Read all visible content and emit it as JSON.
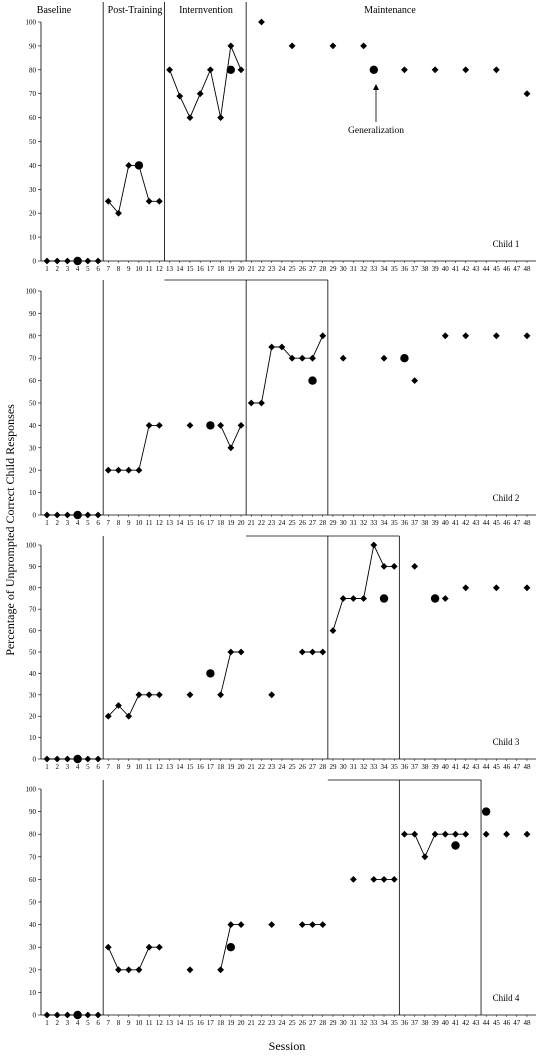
{
  "chart_data": {
    "type": "scatter",
    "xlabel": "Session",
    "ylabel": "Percentage of Unprompted Correct Child Responses",
    "phases": [
      "Baseline",
      "Post-Training",
      "Internvention",
      "Maintenance"
    ],
    "x_ticks": [
      1,
      2,
      3,
      4,
      5,
      6,
      7,
      8,
      9,
      10,
      11,
      12,
      13,
      14,
      15,
      16,
      17,
      18,
      19,
      20,
      21,
      22,
      23,
      24,
      25,
      26,
      27,
      28,
      29,
      30,
      31,
      32,
      33,
      34,
      35,
      36,
      37,
      38,
      39,
      40,
      41,
      42,
      43,
      44,
      45,
      46,
      47,
      48
    ],
    "y_ticks": [
      0,
      10,
      20,
      30,
      40,
      50,
      60,
      70,
      80,
      90,
      100
    ],
    "xlim": [
      1,
      48
    ],
    "ylim": [
      0,
      100
    ],
    "annotation": {
      "text": "Generalization",
      "x": 33,
      "y": 80
    },
    "panels": [
      {
        "label": "Child 1",
        "phase_change_after": [
          6.5,
          12.5,
          20.5
        ],
        "data": [
          [
            1,
            0
          ],
          [
            2,
            0
          ],
          [
            3,
            0
          ],
          [
            4,
            0
          ],
          [
            5,
            0
          ],
          [
            6,
            0
          ],
          [
            7,
            25
          ],
          [
            8,
            20
          ],
          [
            9,
            40
          ],
          [
            10,
            40
          ],
          [
            11,
            25
          ],
          [
            12,
            25
          ],
          [
            13,
            80
          ],
          [
            14,
            69
          ],
          [
            15,
            60
          ],
          [
            16,
            70
          ],
          [
            17,
            80
          ],
          [
            18,
            60
          ],
          [
            19,
            90
          ],
          [
            20,
            80
          ],
          [
            22,
            100
          ],
          [
            25,
            90
          ],
          [
            29,
            90
          ],
          [
            32,
            90
          ],
          [
            36,
            80
          ],
          [
            39,
            80
          ],
          [
            42,
            80
          ],
          [
            45,
            80
          ],
          [
            48,
            70
          ]
        ],
        "generalization": [
          [
            4,
            0
          ],
          [
            10,
            40
          ],
          [
            19,
            80
          ],
          [
            33,
            80
          ]
        ],
        "connected": [
          [
            1,
            2,
            3,
            4,
            5,
            6
          ],
          [
            7,
            8,
            9,
            10,
            11,
            12
          ],
          [
            13,
            14,
            15,
            16,
            17,
            18,
            19,
            20
          ]
        ]
      },
      {
        "label": "Child 2",
        "phase_change_after": [
          6.5,
          20.5,
          28.5
        ],
        "data": [
          [
            1,
            0
          ],
          [
            2,
            0
          ],
          [
            3,
            0
          ],
          [
            4,
            0
          ],
          [
            5,
            0
          ],
          [
            6,
            0
          ],
          [
            7,
            20
          ],
          [
            8,
            20
          ],
          [
            9,
            20
          ],
          [
            10,
            20
          ],
          [
            11,
            40
          ],
          [
            12,
            40
          ],
          [
            15,
            40
          ],
          [
            18,
            40
          ],
          [
            19,
            30
          ],
          [
            20,
            40
          ],
          [
            21,
            50
          ],
          [
            22,
            50
          ],
          [
            23,
            75
          ],
          [
            24,
            75
          ],
          [
            25,
            70
          ],
          [
            26,
            70
          ],
          [
            27,
            70
          ],
          [
            28,
            80
          ],
          [
            30,
            70
          ],
          [
            34,
            70
          ],
          [
            37,
            60
          ],
          [
            40,
            80
          ],
          [
            42,
            80
          ],
          [
            45,
            80
          ],
          [
            48,
            80
          ]
        ],
        "generalization": [
          [
            4,
            0
          ],
          [
            17,
            40
          ],
          [
            27,
            60
          ],
          [
            36,
            70
          ]
        ],
        "connected": [
          [
            1,
            2,
            3,
            4,
            5,
            6
          ],
          [
            7,
            8,
            9,
            10,
            11,
            12
          ],
          [
            18,
            19,
            20
          ],
          [
            21,
            22,
            23,
            24,
            25,
            26,
            27,
            28
          ]
        ]
      },
      {
        "label": "Child 3",
        "phase_change_after": [
          6.5,
          28.5,
          35.5
        ],
        "data": [
          [
            1,
            0
          ],
          [
            2,
            0
          ],
          [
            3,
            0
          ],
          [
            4,
            0
          ],
          [
            5,
            0
          ],
          [
            6,
            0
          ],
          [
            7,
            20
          ],
          [
            8,
            25
          ],
          [
            9,
            20
          ],
          [
            10,
            30
          ],
          [
            11,
            30
          ],
          [
            12,
            30
          ],
          [
            15,
            30
          ],
          [
            18,
            30
          ],
          [
            19,
            50
          ],
          [
            20,
            50
          ],
          [
            23,
            30
          ],
          [
            26,
            50
          ],
          [
            27,
            50
          ],
          [
            28,
            50
          ],
          [
            29,
            60
          ],
          [
            30,
            75
          ],
          [
            31,
            75
          ],
          [
            32,
            75
          ],
          [
            33,
            100
          ],
          [
            34,
            90
          ],
          [
            35,
            90
          ],
          [
            37,
            90
          ],
          [
            40,
            75
          ],
          [
            42,
            80
          ],
          [
            45,
            80
          ],
          [
            48,
            80
          ]
        ],
        "generalization": [
          [
            4,
            0
          ],
          [
            17,
            40
          ],
          [
            34,
            75
          ],
          [
            39,
            75
          ]
        ],
        "connected": [
          [
            1,
            2,
            3,
            4,
            5,
            6
          ],
          [
            7,
            8,
            9,
            10,
            11,
            12
          ],
          [
            18,
            19,
            20
          ],
          [
            26,
            27,
            28
          ],
          [
            29,
            30,
            31,
            32,
            33,
            34,
            35
          ]
        ]
      },
      {
        "label": "Child 4",
        "phase_change_after": [
          6.5,
          35.5,
          43.5
        ],
        "data": [
          [
            1,
            0
          ],
          [
            2,
            0
          ],
          [
            3,
            0
          ],
          [
            4,
            0
          ],
          [
            5,
            0
          ],
          [
            6,
            0
          ],
          [
            7,
            30
          ],
          [
            8,
            20
          ],
          [
            9,
            20
          ],
          [
            10,
            20
          ],
          [
            11,
            30
          ],
          [
            12,
            30
          ],
          [
            15,
            20
          ],
          [
            18,
            20
          ],
          [
            19,
            40
          ],
          [
            20,
            40
          ],
          [
            23,
            40
          ],
          [
            26,
            40
          ],
          [
            27,
            40
          ],
          [
            28,
            40
          ],
          [
            31,
            60
          ],
          [
            33,
            60
          ],
          [
            34,
            60
          ],
          [
            35,
            60
          ],
          [
            36,
            80
          ],
          [
            37,
            80
          ],
          [
            38,
            70
          ],
          [
            39,
            80
          ],
          [
            40,
            80
          ],
          [
            41,
            80
          ],
          [
            42,
            80
          ],
          [
            44,
            80
          ],
          [
            46,
            80
          ],
          [
            48,
            80
          ]
        ],
        "generalization": [
          [
            4,
            0
          ],
          [
            19,
            30
          ],
          [
            41,
            75
          ],
          [
            44,
            90
          ]
        ],
        "connected": [
          [
            1,
            2,
            3,
            4,
            5,
            6
          ],
          [
            7,
            8,
            9,
            10,
            11,
            12
          ],
          [
            18,
            19,
            20
          ],
          [
            26,
            27,
            28
          ],
          [
            33,
            34,
            35
          ],
          [
            36,
            37,
            38,
            39,
            40,
            41,
            42
          ]
        ]
      }
    ]
  }
}
